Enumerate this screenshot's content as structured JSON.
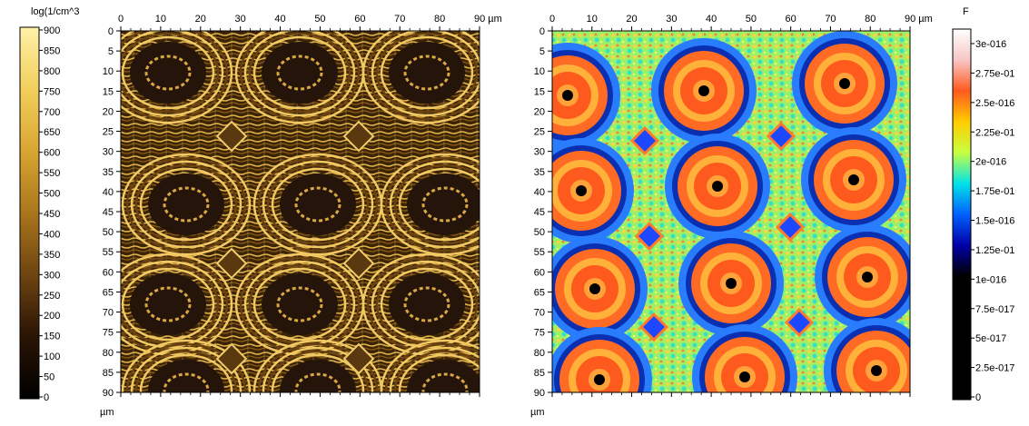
{
  "left_colorbar": {
    "title": "log(1/cm^3",
    "ticks": [
      "900",
      "850",
      "800",
      "750",
      "700",
      "650",
      "600",
      "550",
      "500",
      "450",
      "400",
      "350",
      "300",
      "250",
      "200",
      "150",
      "100",
      "50",
      "0"
    ],
    "gradient": [
      "#fff1a8",
      "#f2cf5c",
      "#d9a531",
      "#a9761c",
      "#6e4410",
      "#2a1404",
      "#000000"
    ]
  },
  "right_colorbar": {
    "title": "F",
    "ticks": [
      "3e-016",
      "2.75e-01",
      "2.5e-016",
      "2.25e-01",
      "2e-016",
      "1.75e-01",
      "1.5e-016",
      "1.25e-01",
      "1e-016",
      "7.5e-017",
      "5e-017",
      "2.5e-017",
      "0"
    ],
    "gradient": [
      "#ffffff",
      "#f7c6c6",
      "#ff5a1e",
      "#ffcc00",
      "#c8ff40",
      "#00e3e8",
      "#0061ff",
      "#0000a8",
      "#000000",
      "#000000",
      "#000000",
      "#000000",
      "#000000"
    ]
  },
  "chart_data": [
    {
      "type": "heatmap",
      "x_ticks": [
        "0",
        "10",
        "20",
        "30",
        "40",
        "50",
        "60",
        "70",
        "80",
        "90 µm"
      ],
      "y_ticks": [
        "0",
        "5",
        "10",
        "15",
        "20",
        "25",
        "30",
        "35",
        "40",
        "45",
        "50",
        "55",
        "60",
        "65",
        "70",
        "75",
        "80",
        "85",
        "90"
      ],
      "x_unit": "µm",
      "xlim": [
        0,
        90
      ],
      "ylim": [
        0,
        90
      ],
      "colorbar": "left_colorbar"
    },
    {
      "type": "heatmap",
      "x_ticks": [
        "0",
        "10",
        "20",
        "30",
        "40",
        "50",
        "60",
        "70",
        "80",
        "90 µm"
      ],
      "y_ticks": [
        "0",
        "5",
        "10",
        "15",
        "20",
        "25",
        "30",
        "35",
        "40",
        "45",
        "50",
        "55",
        "60",
        "65",
        "70",
        "75",
        "80",
        "85",
        "90"
      ],
      "x_unit": "µm",
      "xlim": [
        0,
        90
      ],
      "ylim": [
        0,
        90
      ],
      "colorbar": "right_colorbar"
    }
  ]
}
